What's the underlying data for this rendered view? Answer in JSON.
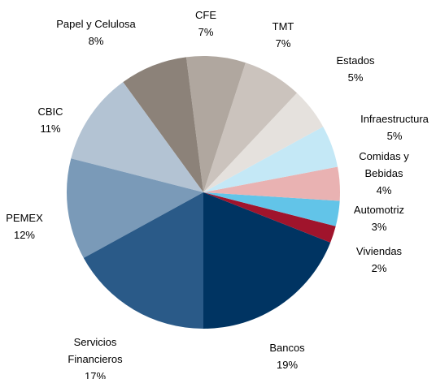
{
  "chart_data": {
    "type": "pie",
    "categories": [
      "Bancos",
      "Viviendas",
      "Automotriz",
      "Comidas y Bebidas",
      "Infraestructura",
      "Estados",
      "TMT",
      "CFE",
      "Papel y Celulosa",
      "CBIC",
      "PEMEX",
      "Servicios Financieros"
    ],
    "values": [
      19,
      2,
      3,
      4,
      5,
      5,
      7,
      7,
      8,
      11,
      12,
      17
    ],
    "value_labels": [
      "19%",
      "2%",
      "3%",
      "4%",
      "5%",
      "5%",
      "7%",
      "7%",
      "8%",
      "11%",
      "12%",
      "17%"
    ],
    "colors": [
      "#003462",
      "#a0142c",
      "#62c4e8",
      "#e9b2b2",
      "#c4e8f6",
      "#e5e1dd",
      "#cbc3bd",
      "#b0a79f",
      "#8c8279",
      "#b3c3d3",
      "#7a9ab8",
      "#2a5a88"
    ],
    "start_angle": 180,
    "direction": "counterclockwise"
  }
}
